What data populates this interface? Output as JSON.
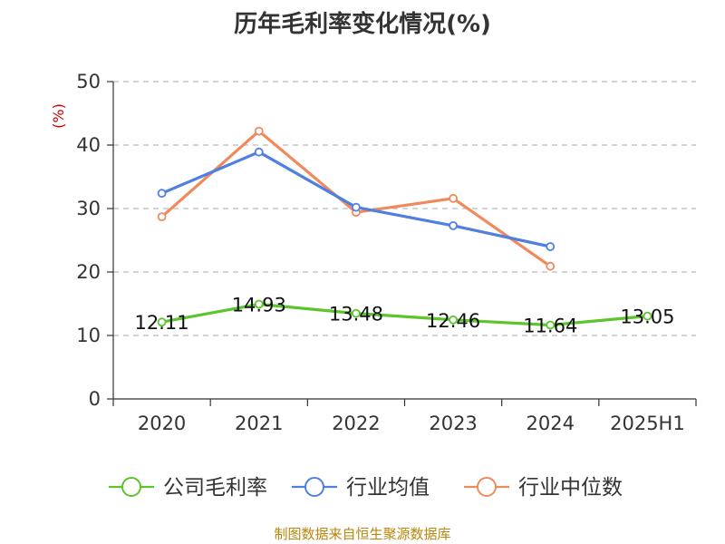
{
  "chart_data": {
    "type": "line",
    "title": "历年毛利率变化情况(%)",
    "ylabel": "(%)",
    "categories": [
      "2020",
      "2021",
      "2022",
      "2023",
      "2024",
      "2025H1"
    ],
    "ylim": [
      0,
      50
    ],
    "yticks": [
      0,
      10,
      20,
      30,
      40,
      50
    ],
    "grid": true,
    "legend_position": "bottom",
    "series": [
      {
        "name": "公司毛利率",
        "color": "#5cc52b",
        "values": [
          12.11,
          14.93,
          13.48,
          12.46,
          11.64,
          13.05
        ],
        "labels": [
          "12.11",
          "14.93",
          "13.48",
          "12.46",
          "11.64",
          "13.05"
        ],
        "show_labels": true
      },
      {
        "name": "行业均值",
        "color": "#4f7fe0",
        "values": [
          32.4,
          38.9,
          30.2,
          27.3,
          24.0,
          null
        ],
        "show_labels": false
      },
      {
        "name": "行业中位数",
        "color": "#f08a5d",
        "values": [
          28.7,
          42.2,
          29.4,
          31.6,
          20.9,
          null
        ],
        "show_labels": false
      }
    ]
  },
  "source_text": "制图数据来自恒生聚源数据库"
}
